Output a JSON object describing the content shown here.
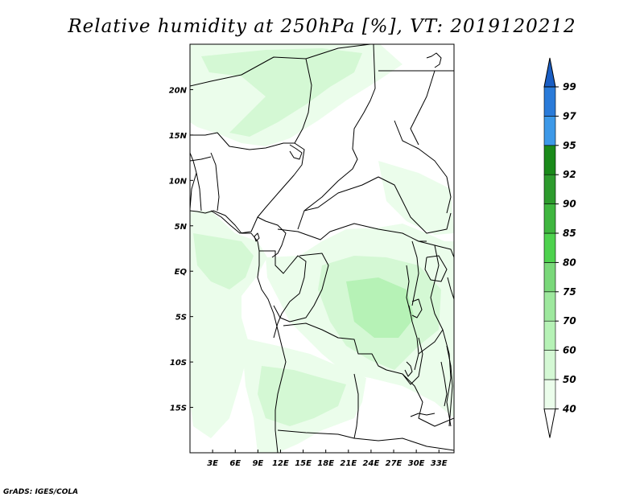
{
  "title": "Relative humidity at 250hPa [%], VT: 2019120212",
  "credit": "GrADS: IGES/COLA",
  "map": {
    "lon_range": [
      0,
      35
    ],
    "lat_range": [
      -20,
      25
    ],
    "lat_ticks": [
      {
        "value": 20,
        "label": "20N"
      },
      {
        "value": 15,
        "label": "15N"
      },
      {
        "value": 10,
        "label": "10N"
      },
      {
        "value": 5,
        "label": "5N"
      },
      {
        "value": 0,
        "label": "EQ"
      },
      {
        "value": -5,
        "label": "5S"
      },
      {
        "value": -10,
        "label": "10S"
      },
      {
        "value": -15,
        "label": "15S"
      }
    ],
    "lon_ticks": [
      {
        "value": 3,
        "label": "3E"
      },
      {
        "value": 6,
        "label": "6E"
      },
      {
        "value": 9,
        "label": "9E"
      },
      {
        "value": 12,
        "label": "12E"
      },
      {
        "value": 15,
        "label": "15E"
      },
      {
        "value": 18,
        "label": "18E"
      },
      {
        "value": 21,
        "label": "21E"
      },
      {
        "value": 24,
        "label": "24E"
      },
      {
        "value": 27,
        "label": "27E"
      },
      {
        "value": 30,
        "label": "30E"
      },
      {
        "value": 33,
        "label": "33E"
      }
    ]
  },
  "colorbar": {
    "levels": [
      "40",
      "50",
      "60",
      "70",
      "75",
      "80",
      "85",
      "90",
      "92",
      "95",
      "97",
      "99"
    ],
    "colors": [
      "#ffffff",
      "#ebfdeb",
      "#d4f8d4",
      "#b6f2b6",
      "#9ee89e",
      "#7ad87a",
      "#4ed24e",
      "#3fb63f",
      "#2d9b2d",
      "#1a8a1a",
      "#3d99e8",
      "#2a7bd9",
      "#1a5ec4"
    ]
  },
  "colors": {
    "shade_light": "#ebfdeb",
    "shade_mid": "#d4f8d4",
    "shade_deep": "#b6f2b6",
    "border": "#000000"
  }
}
